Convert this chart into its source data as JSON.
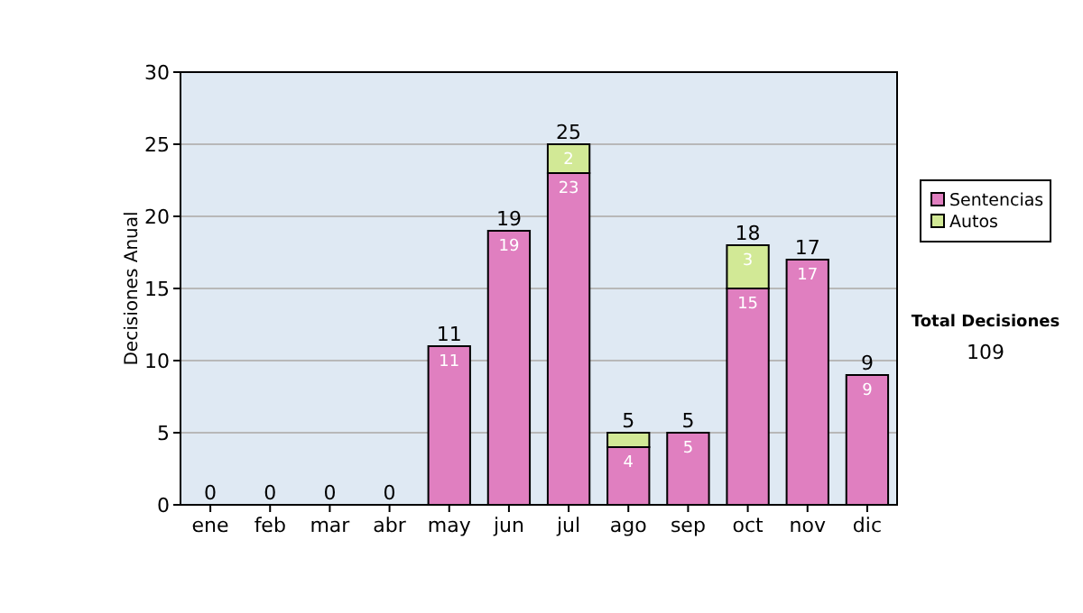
{
  "chart_data": {
    "type": "bar",
    "stacked": true,
    "ylabel": "Decisiones Anual",
    "categories": [
      "ene",
      "feb",
      "mar",
      "abr",
      "may",
      "jun",
      "jul",
      "ago",
      "sep",
      "oct",
      "nov",
      "dic"
    ],
    "series": [
      {
        "name": "Sentencias",
        "color": "#e07fc0",
        "values": [
          0,
          0,
          0,
          0,
          11,
          19,
          23,
          4,
          5,
          15,
          17,
          9
        ],
        "value_labels": [
          null,
          null,
          null,
          null,
          "11",
          "19",
          "23",
          "4",
          "5",
          "15",
          "17",
          "9"
        ]
      },
      {
        "name": "Autos",
        "color": "#d2e996",
        "values": [
          0,
          0,
          0,
          0,
          0,
          0,
          2,
          1,
          0,
          3,
          0,
          0
        ],
        "value_labels": [
          null,
          null,
          null,
          null,
          null,
          null,
          "2",
          null,
          null,
          "3",
          null,
          null
        ]
      }
    ],
    "totals": [
      "0",
      "0",
      "0",
      "0",
      "11",
      "19",
      "25",
      "5",
      "5",
      "18",
      "17",
      "9"
    ],
    "ylim": [
      0,
      30
    ],
    "yticks": [
      0,
      5,
      10,
      15,
      20,
      25,
      30
    ],
    "grid": "y",
    "legend": "right",
    "annotations": [
      "Total Decisiones",
      "109"
    ]
  }
}
